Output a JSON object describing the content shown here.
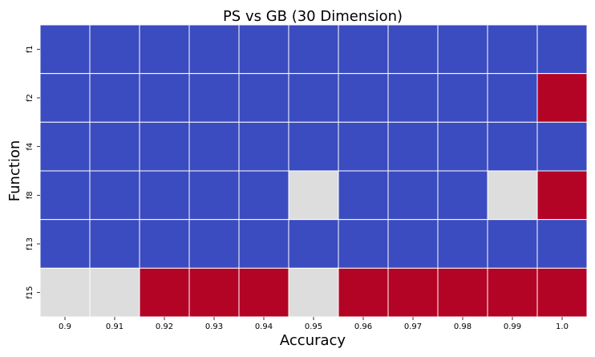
{
  "chart_data": {
    "type": "heatmap",
    "title": "PS vs GB (30 Dimension)",
    "xlabel": "Accuracy",
    "ylabel": "Function",
    "x_categories": [
      "0.9",
      "0.91",
      "0.92",
      "0.93",
      "0.94",
      "0.95",
      "0.96",
      "0.97",
      "0.98",
      "0.99",
      "1.0"
    ],
    "y_categories": [
      "f1",
      "f2",
      "f4",
      "f8",
      "f13",
      "f15"
    ],
    "values": [
      [
        -1,
        -1,
        -1,
        -1,
        -1,
        -1,
        -1,
        -1,
        -1,
        -1,
        -1
      ],
      [
        -1,
        -1,
        -1,
        -1,
        -1,
        -1,
        -1,
        -1,
        -1,
        -1,
        1
      ],
      [
        -1,
        -1,
        -1,
        -1,
        -1,
        -1,
        -1,
        -1,
        -1,
        -1,
        -1
      ],
      [
        -1,
        -1,
        -1,
        -1,
        -1,
        0,
        -1,
        -1,
        -1,
        0,
        1
      ],
      [
        -1,
        -1,
        -1,
        -1,
        -1,
        -1,
        -1,
        -1,
        -1,
        -1,
        -1
      ],
      [
        0,
        0,
        1,
        1,
        1,
        0,
        1,
        1,
        1,
        1,
        1
      ]
    ],
    "value_colors": {
      "-1": "#3b4cc0",
      "0": "#dddddd",
      "1": "#b40426"
    },
    "grid_color": "#ffffff",
    "colorbar": false
  }
}
